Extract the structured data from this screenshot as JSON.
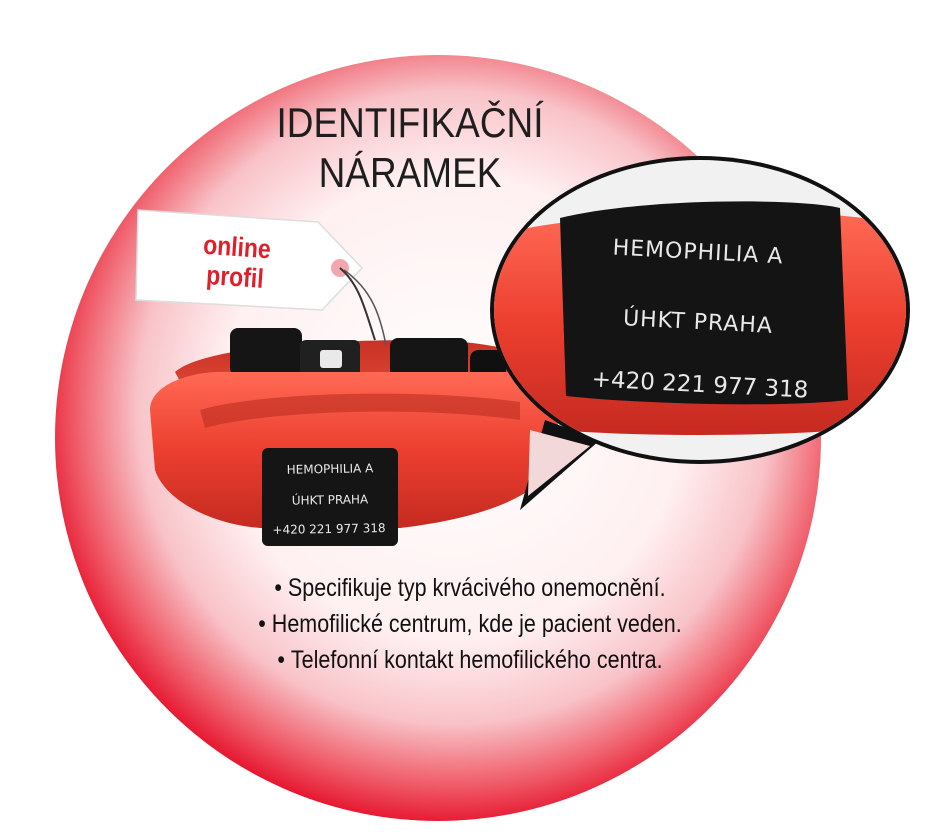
{
  "title": {
    "line1": "IDENTIFIKAČNÍ",
    "line2": "NÁRAMEK"
  },
  "tag": {
    "line1": "online",
    "line2": "profil"
  },
  "plate": {
    "line1": "HEMOPHILIA A",
    "line2": "ÚHKT PRAHA",
    "line3": "+420 221 977 318"
  },
  "bullets": [
    "Specifikuje typ krvácivého onemocnění.",
    "Hemofilické centrum, kde je pacient veden.",
    "Telefonní kontakt hemofilického centra."
  ],
  "colors": {
    "circle_outer": "#e5102b",
    "circle_inner": "#ffffff",
    "band": "#ee4a3a",
    "plate": "#151515",
    "tag_text": "#e21e2a"
  },
  "icons": {
    "tag": "price-tag-icon",
    "bracelet": "silicone-bracelet-icon",
    "bubble": "speech-bubble-icon"
  }
}
